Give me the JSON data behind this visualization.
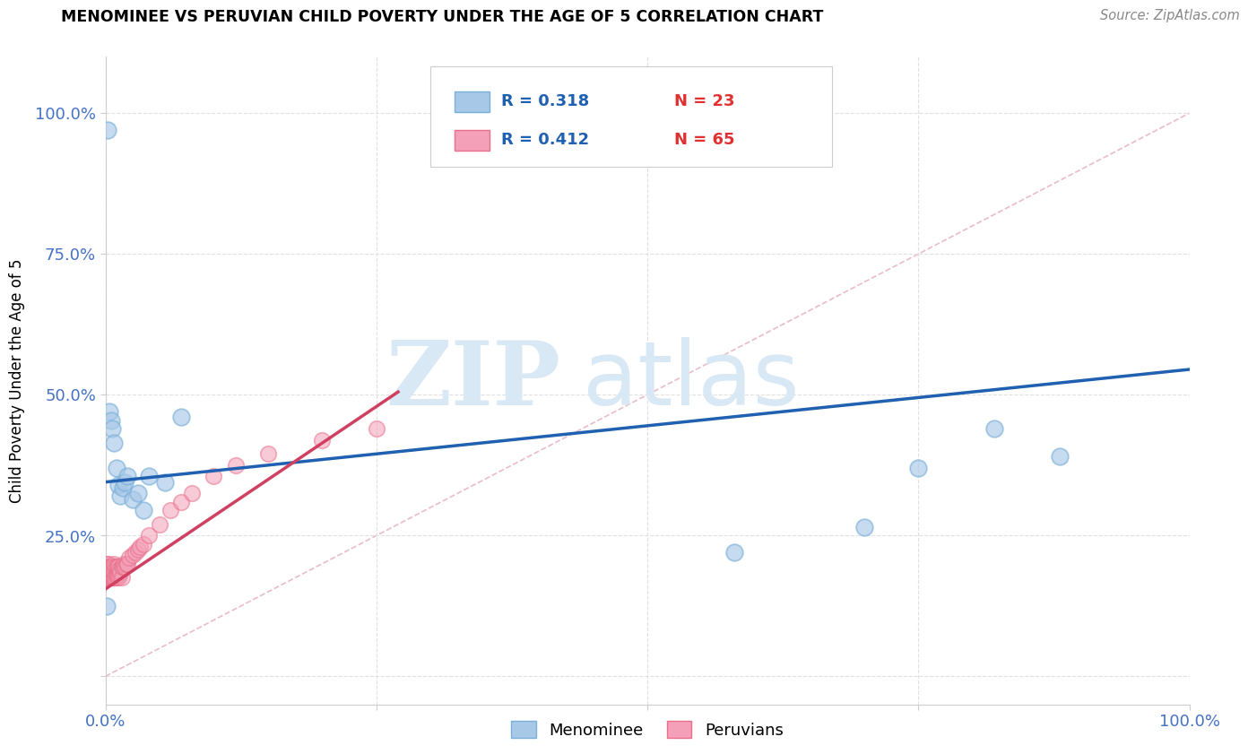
{
  "title": "MENOMINEE VS PERUVIAN CHILD POVERTY UNDER THE AGE OF 5 CORRELATION CHART",
  "source": "Source: ZipAtlas.com",
  "ylabel": "Child Poverty Under the Age of 5",
  "xlim": [
    0,
    1
  ],
  "ylim": [
    -0.05,
    1.1
  ],
  "xticks": [
    0,
    0.25,
    0.5,
    0.75,
    1.0
  ],
  "yticks": [
    0,
    0.25,
    0.5,
    0.75,
    1.0
  ],
  "xticklabels": [
    "0.0%",
    "",
    "",
    "",
    "100.0%"
  ],
  "yticklabels": [
    "",
    "25.0%",
    "50.0%",
    "75.0%",
    "100.0%"
  ],
  "menominee_x": [
    0.002,
    0.004,
    0.005,
    0.006,
    0.008,
    0.01,
    0.012,
    0.014,
    0.016,
    0.018,
    0.02,
    0.025,
    0.03,
    0.035,
    0.04,
    0.055,
    0.07,
    0.58,
    0.7,
    0.75,
    0.82,
    0.88,
    0.001
  ],
  "menominee_y": [
    0.97,
    0.47,
    0.455,
    0.44,
    0.415,
    0.37,
    0.34,
    0.32,
    0.335,
    0.345,
    0.355,
    0.315,
    0.325,
    0.295,
    0.355,
    0.345,
    0.46,
    0.22,
    0.265,
    0.37,
    0.44,
    0.39,
    0.125
  ],
  "peruvians_x": [
    0.001,
    0.001,
    0.001,
    0.001,
    0.001,
    0.002,
    0.002,
    0.002,
    0.002,
    0.003,
    0.003,
    0.003,
    0.003,
    0.003,
    0.004,
    0.004,
    0.004,
    0.005,
    0.005,
    0.005,
    0.005,
    0.006,
    0.006,
    0.006,
    0.007,
    0.007,
    0.007,
    0.008,
    0.008,
    0.008,
    0.009,
    0.009,
    0.01,
    0.01,
    0.01,
    0.011,
    0.011,
    0.012,
    0.012,
    0.013,
    0.013,
    0.014,
    0.015,
    0.015,
    0.016,
    0.017,
    0.018,
    0.019,
    0.02,
    0.022,
    0.025,
    0.028,
    0.03,
    0.032,
    0.035,
    0.04,
    0.05,
    0.06,
    0.07,
    0.08,
    0.1,
    0.12,
    0.15,
    0.2,
    0.25
  ],
  "peruvians_y": [
    0.175,
    0.185,
    0.19,
    0.195,
    0.2,
    0.175,
    0.18,
    0.185,
    0.195,
    0.175,
    0.18,
    0.185,
    0.19,
    0.2,
    0.175,
    0.18,
    0.195,
    0.175,
    0.18,
    0.185,
    0.195,
    0.175,
    0.18,
    0.195,
    0.175,
    0.185,
    0.195,
    0.175,
    0.185,
    0.2,
    0.175,
    0.195,
    0.175,
    0.18,
    0.195,
    0.18,
    0.195,
    0.175,
    0.195,
    0.18,
    0.19,
    0.185,
    0.175,
    0.195,
    0.195,
    0.2,
    0.195,
    0.2,
    0.2,
    0.21,
    0.215,
    0.22,
    0.225,
    0.23,
    0.235,
    0.25,
    0.27,
    0.295,
    0.31,
    0.325,
    0.355,
    0.375,
    0.395,
    0.42,
    0.44
  ],
  "blue_line_x": [
    0.0,
    1.0
  ],
  "blue_line_y": [
    0.345,
    0.545
  ],
  "pink_line_x": [
    0.0,
    0.27
  ],
  "pink_line_y": [
    0.155,
    0.505
  ],
  "diag_line_x": [
    0.0,
    1.0
  ],
  "diag_line_y": [
    0.0,
    1.0
  ],
  "menominee_color": "#a8c8e8",
  "peruvians_color": "#f4a0b8",
  "menominee_edge": "#7ab0d8",
  "peruvians_edge": "#e8708a",
  "blue_line_color": "#2060b0",
  "pink_line_color": "#d04060",
  "diag_color": "#e0a0b0",
  "diag_alpha": 0.7,
  "watermark_zip": "ZIP",
  "watermark_atlas": "atlas",
  "watermark_color": "#d8e8f4",
  "background_color": "#ffffff",
  "grid_color": "#e0e0e0",
  "tick_color": "#4472c4",
  "legend_R_color": "#2060b0",
  "legend_N_color": "#e03030"
}
